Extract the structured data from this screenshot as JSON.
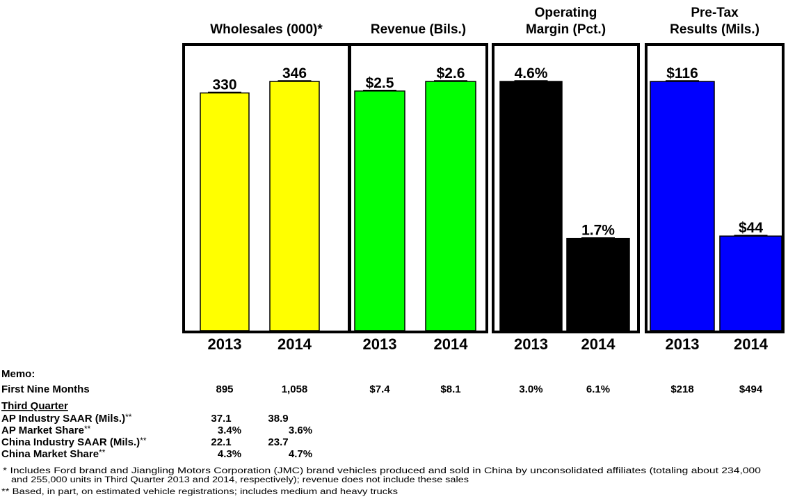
{
  "chart_data": [
    {
      "type": "bar",
      "title": [
        "Wholesales (000)*"
      ],
      "categories": [
        "2013",
        "2014"
      ],
      "values": [
        330,
        346
      ],
      "value_labels": [
        "330",
        "346"
      ],
      "color": "#ffff00"
    },
    {
      "type": "bar",
      "title": [
        "Revenue (Bils.)"
      ],
      "categories": [
        "2013",
        "2014"
      ],
      "values": [
        2.5,
        2.6
      ],
      "value_labels": [
        "$2.5",
        "$2.6"
      ],
      "color": "#00ff00"
    },
    {
      "type": "bar",
      "title": [
        "Operating",
        "Margin (Pct.)"
      ],
      "categories": [
        "2013",
        "2014"
      ],
      "values": [
        4.6,
        1.7
      ],
      "value_labels": [
        "4.6%",
        "1.7%"
      ],
      "color": "#000000"
    },
    {
      "type": "bar",
      "title": [
        "Pre-Tax",
        "Results (Mils.)"
      ],
      "categories": [
        "2013",
        "2014"
      ],
      "values": [
        116,
        44
      ],
      "value_labels": [
        "$116",
        "$44"
      ],
      "color": "#0000ff"
    }
  ],
  "memo": {
    "heading": "Memo:",
    "first_nine_months": {
      "label": "First Nine Months",
      "values": [
        "895",
        "1,058",
        "$7.4",
        "$8.1",
        "3.0%",
        "6.1%",
        "$218",
        "$494"
      ]
    },
    "third_quarter": {
      "heading": "Third Quarter",
      "rows": [
        {
          "label": "AP Industry SAAR (Mils.)",
          "note": "**",
          "values": [
            "37.1",
            "38.9"
          ]
        },
        {
          "label": "AP Market Share",
          "note": "**",
          "values": [
            "3.4%",
            "3.6%"
          ]
        },
        {
          "label": "China Industry SAAR (Mils.)",
          "note": "**",
          "values": [
            "22.1",
            "23.7"
          ]
        },
        {
          "label": "China Market Share",
          "note": "**",
          "values": [
            "4.3%",
            "4.7%"
          ]
        }
      ]
    }
  },
  "footnotes": [
    "* Includes Ford brand and Jiangling Motors Corporation (JMC) brand vehicles produced and sold in China by unconsolidated affiliates (totaling about 234,000",
    "and 255,000 units in Third Quarter 2013 and 2014, respectively); revenue does not include these sales",
    "** Based, in part, on estimated vehicle registrations; includes medium and heavy trucks"
  ]
}
